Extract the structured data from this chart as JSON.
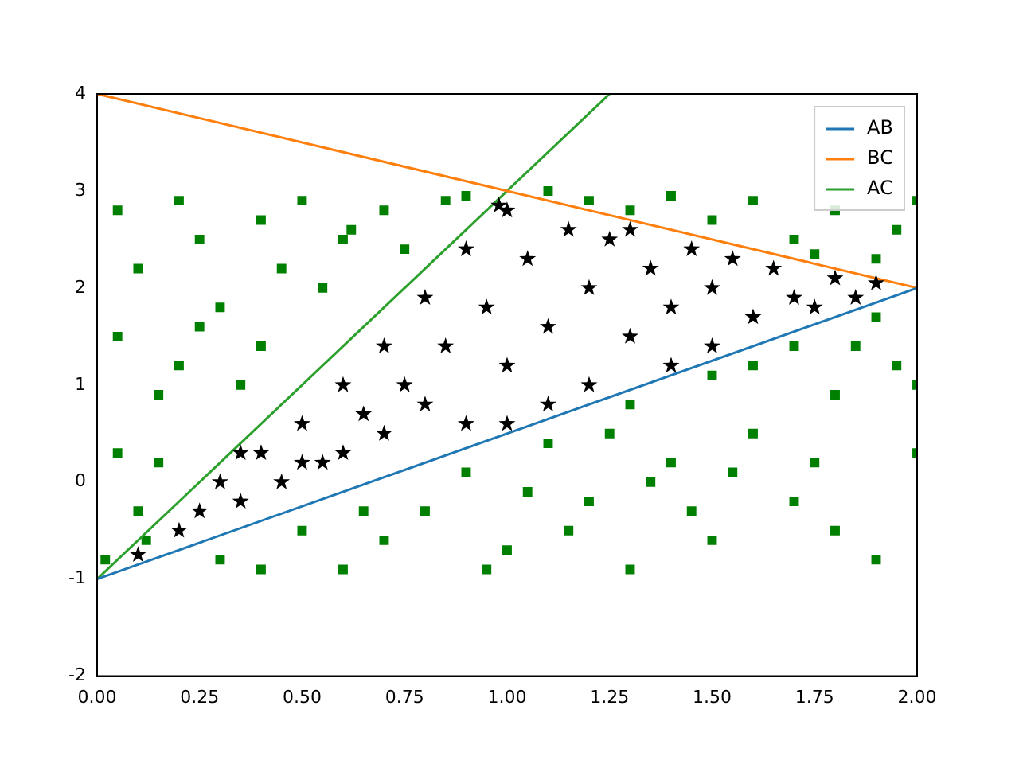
{
  "chart_data": {
    "type": "scatter",
    "xlim": [
      0,
      2
    ],
    "ylim": [
      -2,
      4
    ],
    "xticks": [
      {
        "value": 0,
        "label": "0.00"
      },
      {
        "value": 0.25,
        "label": "0.25"
      },
      {
        "value": 0.5,
        "label": "0.50"
      },
      {
        "value": 0.75,
        "label": "0.75"
      },
      {
        "value": 1,
        "label": "1.00"
      },
      {
        "value": 1.25,
        "label": "1.25"
      },
      {
        "value": 1.5,
        "label": "1.50"
      },
      {
        "value": 1.75,
        "label": "1.75"
      },
      {
        "value": 2,
        "label": "2.00"
      }
    ],
    "yticks": [
      -2,
      -1,
      0,
      1,
      2,
      3,
      4
    ],
    "grid": false,
    "legend": "top right",
    "series": [
      {
        "type": "scatter",
        "marker": "square",
        "color": "#008000",
        "x": [
          0.05,
          0.1,
          0.05,
          0.15,
          0.05,
          0.1,
          0.02,
          0.2,
          0.25,
          0.3,
          0.2,
          0.4,
          0.45,
          0.35,
          0.5,
          0.6,
          0.55,
          0.7,
          0.75,
          0.85,
          0.15,
          0.25,
          0.12,
          0.4,
          0.62,
          0.9,
          0.3,
          0.5,
          0.6,
          0.8,
          0.9,
          1.0,
          1.1,
          1.2,
          1.3,
          1.4,
          1.5,
          1.5,
          1.6,
          1.7,
          1.7,
          1.8,
          1.9,
          1.9,
          2.0,
          1.95,
          1.3,
          0.7,
          1.05,
          1.25,
          1.45,
          1.6,
          1.8,
          1.75,
          1.15,
          0.95,
          0.4,
          2.0,
          1.35,
          1.55,
          1.85,
          0.65,
          1.1,
          1.3,
          1.5,
          1.6,
          1.7,
          1.8,
          1.9,
          2.0,
          1.95,
          1.4,
          1.75,
          1.2
        ],
        "values": [
          2.8,
          2.2,
          1.5,
          0.9,
          0.3,
          -0.3,
          -0.8,
          2.9,
          2.5,
          1.8,
          1.2,
          2.7,
          2.2,
          1.0,
          2.9,
          2.5,
          2.0,
          2.8,
          2.4,
          2.9,
          0.2,
          1.6,
          -0.6,
          1.4,
          2.6,
          2.95,
          -0.8,
          -0.5,
          -0.9,
          -0.3,
          0.1,
          -0.7,
          0.4,
          -0.2,
          0.8,
          0.2,
          -0.6,
          1.1,
          0.5,
          1.4,
          -0.2,
          0.9,
          1.7,
          -0.8,
          0.3,
          1.2,
          -0.9,
          -0.6,
          -0.1,
          0.5,
          -0.3,
          1.2,
          -0.5,
          0.2,
          -0.5,
          -0.9,
          -0.9,
          1.0,
          0.0,
          0.1,
          1.4,
          -0.3,
          3.0,
          2.8,
          2.7,
          2.9,
          2.5,
          2.8,
          2.3,
          2.9,
          2.6,
          2.95,
          2.35,
          2.9
        ]
      },
      {
        "type": "scatter",
        "marker": "star",
        "color": "#000000",
        "x": [
          0.1,
          0.2,
          0.25,
          0.3,
          0.35,
          0.4,
          0.45,
          0.5,
          0.55,
          0.6,
          0.6,
          0.65,
          0.7,
          0.7,
          0.75,
          0.8,
          0.8,
          0.85,
          0.9,
          0.9,
          0.95,
          1.0,
          1.0,
          1.0,
          1.05,
          1.1,
          1.1,
          1.15,
          1.2,
          1.2,
          1.25,
          1.3,
          1.35,
          1.4,
          1.4,
          1.45,
          1.5,
          1.5,
          1.55,
          1.6,
          1.65,
          1.7,
          1.75,
          1.8,
          1.85,
          1.9,
          0.98,
          0.35,
          0.5,
          1.3
        ],
        "values": [
          -0.75,
          -0.5,
          -0.3,
          0.0,
          -0.2,
          0.3,
          0.0,
          0.6,
          0.2,
          1.0,
          0.3,
          0.7,
          1.4,
          0.5,
          1.0,
          1.9,
          0.8,
          1.4,
          2.4,
          0.6,
          1.8,
          2.8,
          1.2,
          0.6,
          2.3,
          1.6,
          0.8,
          2.6,
          2.0,
          1.0,
          2.5,
          1.5,
          2.2,
          1.8,
          1.2,
          2.4,
          2.0,
          1.4,
          2.3,
          1.7,
          2.2,
          1.9,
          1.8,
          2.1,
          1.9,
          2.05,
          2.85,
          0.3,
          0.2,
          2.6
        ]
      },
      {
        "type": "line",
        "name": "AB",
        "color": "#1f77b4",
        "x": [
          0,
          2
        ],
        "values": [
          -1,
          2
        ]
      },
      {
        "type": "line",
        "name": "BC",
        "color": "#ff7f0e",
        "x": [
          0,
          2
        ],
        "values": [
          4,
          2
        ]
      },
      {
        "type": "line",
        "name": "AC",
        "color": "#2ca02c",
        "x": [
          0,
          1.25
        ],
        "values": [
          -1,
          4
        ]
      }
    ]
  }
}
